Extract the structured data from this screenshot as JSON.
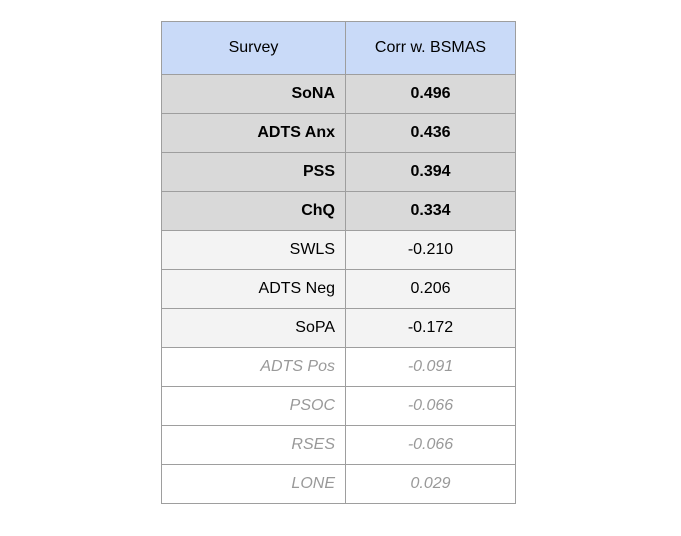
{
  "table": {
    "headers": [
      "Survey",
      "Corr w. BSMAS"
    ],
    "rows": [
      {
        "survey": "SoNA",
        "corr": "0.496",
        "tier": "strong"
      },
      {
        "survey": "ADTS Anx",
        "corr": "0.436",
        "tier": "strong"
      },
      {
        "survey": "PSS",
        "corr": "0.394",
        "tier": "strong"
      },
      {
        "survey": "ChQ",
        "corr": "0.334",
        "tier": "strong"
      },
      {
        "survey": "SWLS",
        "corr": "-0.210",
        "tier": "mid"
      },
      {
        "survey": "ADTS Neg",
        "corr": "0.206",
        "tier": "mid"
      },
      {
        "survey": "SoPA",
        "corr": "-0.172",
        "tier": "mid"
      },
      {
        "survey": "ADTS Pos",
        "corr": "-0.091",
        "tier": "weak"
      },
      {
        "survey": "PSOC",
        "corr": "-0.066",
        "tier": "weak"
      },
      {
        "survey": "RSES",
        "corr": "-0.066",
        "tier": "weak"
      },
      {
        "survey": "LONE",
        "corr": "0.029",
        "tier": "weak"
      }
    ]
  },
  "colors": {
    "header_bg": "#c9daf8",
    "strong_bg": "#d9d9d9",
    "mid_bg": "#f3f3f3",
    "weak_bg": "#ffffff",
    "weak_text": "#999999",
    "border": "#9e9e9e"
  }
}
